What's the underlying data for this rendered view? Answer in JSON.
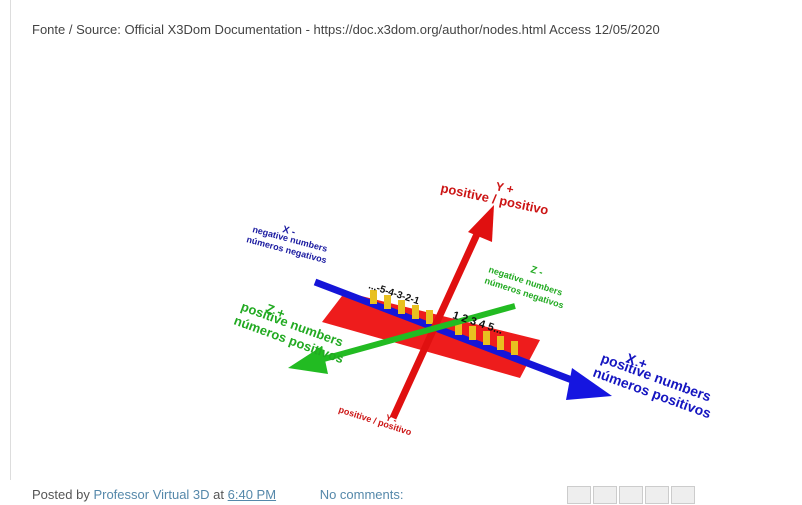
{
  "source": "Fonte / Source: Official X3Dom Documentation - https://doc.x3dom.org/author/nodes.html Access 12/05/2020",
  "figure": {
    "y_plus": {
      "title": "Y +",
      "text": "positive / positivo"
    },
    "y_minus": {
      "title": "Y -",
      "text": "positive / positivo"
    },
    "x_minus": {
      "title": "X -",
      "line1": "negative numbers",
      "line2": "números negativos"
    },
    "z_minus": {
      "title": "Z -",
      "line1": "negative numbers",
      "line2": "números negativos"
    },
    "z_plus": {
      "title": "Z +",
      "line1": "positive numbers",
      "line2": "números positivos"
    },
    "x_plus": {
      "title": "X +",
      "line1": "positive numbers",
      "line2": "números positivos"
    },
    "neg_ticks": "...-5-4-3-2-1",
    "pos_ticks": "1  2  3  4  5..."
  },
  "footer": {
    "posted_by": "Posted by",
    "author": "Professor Virtual 3D",
    "at": "at",
    "time": "6:40 PM",
    "comments": "No comments:"
  }
}
